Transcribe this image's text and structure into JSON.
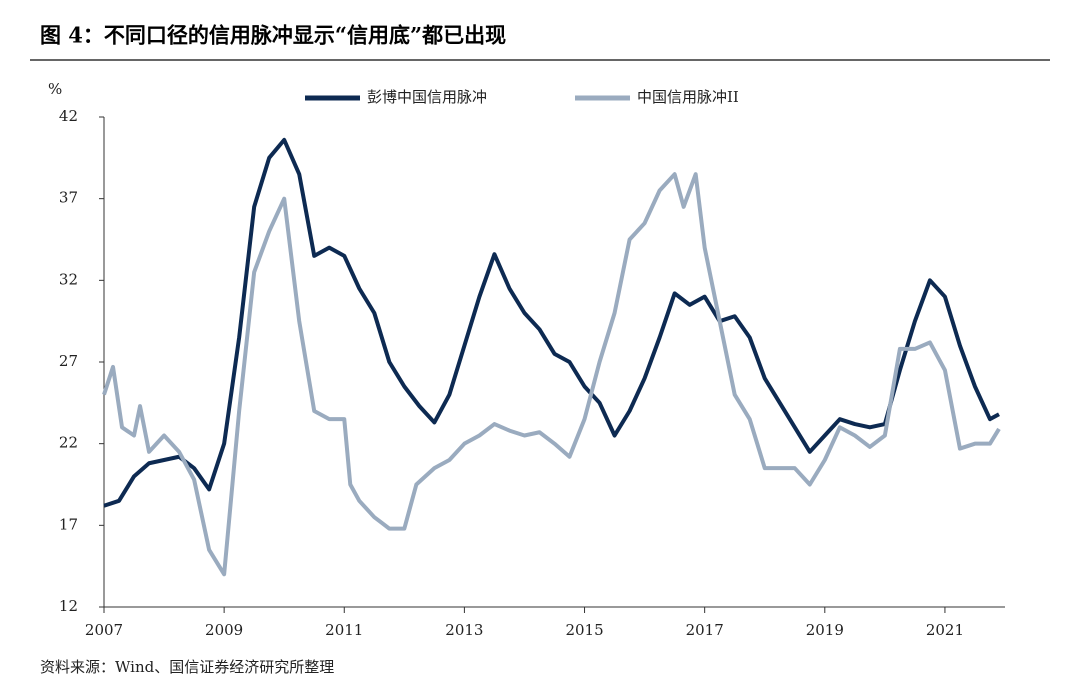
{
  "chart_data": {
    "type": "line",
    "title": "图 4：不同口径的信用脉冲显示“信用底”都已出现",
    "y_unit": "%",
    "source": "资料来源：Wind、国信证券经济研究所整理",
    "xlim": [
      2007,
      2022
    ],
    "xticks": [
      2007,
      2009,
      2011,
      2013,
      2015,
      2017,
      2019,
      2021
    ],
    "ylim": [
      12,
      42
    ],
    "yticks": [
      12,
      17,
      22,
      27,
      32,
      37,
      42
    ],
    "legend": "top",
    "series": [
      {
        "name": "彭博中国信用脉冲",
        "color": "#0d2a52",
        "x": [
          2007.0,
          2007.25,
          2007.5,
          2007.75,
          2008.0,
          2008.25,
          2008.5,
          2008.75,
          2009.0,
          2009.25,
          2009.5,
          2009.75,
          2010.0,
          2010.25,
          2010.5,
          2010.75,
          2011.0,
          2011.25,
          2011.5,
          2011.75,
          2012.0,
          2012.25,
          2012.5,
          2012.75,
          2013.0,
          2013.25,
          2013.5,
          2013.75,
          2014.0,
          2014.25,
          2014.5,
          2014.75,
          2015.0,
          2015.25,
          2015.5,
          2015.75,
          2016.0,
          2016.25,
          2016.5,
          2016.75,
          2017.0,
          2017.25,
          2017.5,
          2017.75,
          2018.0,
          2018.25,
          2018.5,
          2018.75,
          2019.0,
          2019.25,
          2019.5,
          2019.75,
          2020.0,
          2020.25,
          2020.5,
          2020.75,
          2021.0,
          2021.25,
          2021.5,
          2021.75,
          2021.9
        ],
        "values": [
          18.2,
          18.5,
          20.0,
          20.8,
          21.0,
          21.2,
          20.5,
          19.2,
          22.0,
          28.5,
          36.5,
          39.5,
          40.6,
          38.5,
          33.5,
          34.0,
          33.5,
          31.5,
          30.0,
          27.0,
          25.5,
          24.3,
          23.3,
          25.0,
          28.0,
          31.0,
          33.6,
          31.5,
          30.0,
          29.0,
          27.5,
          27.0,
          25.5,
          24.5,
          22.5,
          24.0,
          26.0,
          28.5,
          31.2,
          30.5,
          31.0,
          29.5,
          29.8,
          28.5,
          26.0,
          24.5,
          23.0,
          21.5,
          22.5,
          23.5,
          23.2,
          23.0,
          23.2,
          26.5,
          29.5,
          32.0,
          31.0,
          28.0,
          25.5,
          23.5,
          23.8
        ]
      },
      {
        "name": "中国信用脉冲II",
        "color": "#9aabbf",
        "x": [
          2007.0,
          2007.15,
          2007.3,
          2007.5,
          2007.6,
          2007.75,
          2008.0,
          2008.25,
          2008.5,
          2008.75,
          2009.0,
          2009.25,
          2009.5,
          2009.75,
          2010.0,
          2010.25,
          2010.5,
          2010.75,
          2011.0,
          2011.1,
          2011.25,
          2011.5,
          2011.75,
          2012.0,
          2012.2,
          2012.5,
          2012.75,
          2013.0,
          2013.25,
          2013.5,
          2013.75,
          2014.0,
          2014.25,
          2014.5,
          2014.75,
          2015.0,
          2015.25,
          2015.5,
          2015.75,
          2016.0,
          2016.25,
          2016.5,
          2016.65,
          2016.85,
          2017.0,
          2017.25,
          2017.5,
          2017.75,
          2018.0,
          2018.25,
          2018.5,
          2018.75,
          2019.0,
          2019.25,
          2019.5,
          2019.75,
          2020.0,
          2020.25,
          2020.5,
          2020.75,
          2021.0,
          2021.25,
          2021.5,
          2021.75,
          2021.9
        ],
        "values": [
          25.0,
          26.7,
          23.0,
          22.5,
          24.3,
          21.5,
          22.5,
          21.5,
          19.8,
          15.5,
          14.0,
          24.0,
          32.5,
          35.0,
          37.0,
          29.5,
          24.0,
          23.5,
          23.5,
          19.5,
          18.5,
          17.5,
          16.8,
          16.8,
          19.5,
          20.5,
          21.0,
          22.0,
          22.5,
          23.2,
          22.8,
          22.5,
          22.7,
          22.0,
          21.2,
          23.5,
          27.0,
          30.0,
          34.5,
          35.5,
          37.5,
          38.5,
          36.5,
          38.5,
          34.0,
          29.5,
          25.0,
          23.5,
          20.5,
          20.5,
          20.5,
          19.5,
          21.0,
          23.0,
          22.5,
          21.8,
          22.5,
          27.8,
          27.8,
          28.2,
          26.5,
          21.7,
          22.0,
          22.0,
          22.9
        ]
      }
    ]
  }
}
